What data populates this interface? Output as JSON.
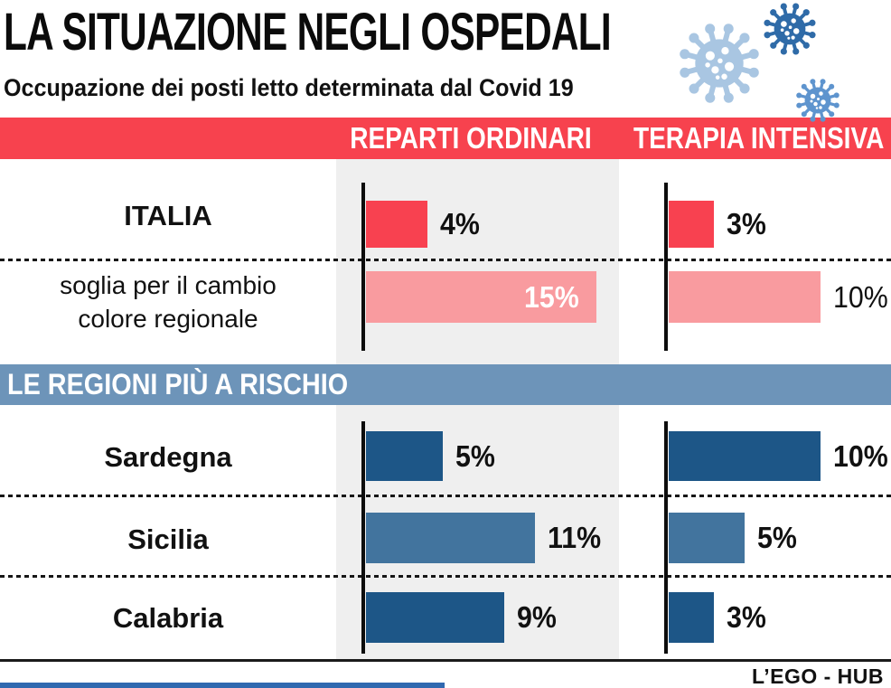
{
  "title": "LA SITUAZIONE NEGLI OSPEDALI",
  "subtitle": "Occupazione dei posti letto determinata dal Covid 19",
  "columns_header": {
    "reparti": "REPARTI ORDINARI",
    "terapia": "TERAPIA INTENSIVA"
  },
  "section_regions_title": "LE REGIONI PIÙ A RISCHIO",
  "footer": {
    "credit": "L’EGO - HUB"
  },
  "icons": [
    {
      "name": "virus-icon-large",
      "color": "#a9c6e2"
    },
    {
      "name": "virus-icon-dark",
      "color": "#2f6ba8"
    },
    {
      "name": "virus-icon-small",
      "color": "#5e94ce"
    }
  ],
  "colors": {
    "header_red": "#f7424e",
    "bar_red": "#f84150",
    "bar_pink": "#f99b9f",
    "regions_header_blue": "#6d94b9",
    "bar_dark_blue": "#1d5687",
    "bar_mid_blue": "#42749e",
    "chart_column_bg": "#efefef",
    "footer_accent_blue": "#3069b0"
  },
  "chart_data": {
    "type": "bar",
    "orientation": "horizontal",
    "unit": "%",
    "columns": [
      "REPARTI ORDINARI",
      "TERAPIA INTENSIVA"
    ],
    "sections": [
      {
        "name": "nazionale",
        "rows": [
          {
            "label": "ITALIA",
            "label_lines": [
              "ITALIA"
            ],
            "reparti_ordinari": 4,
            "terapia_intensiva": 3,
            "display_reparti": "4%",
            "display_terapia": "3%",
            "bar_color": "#f84150",
            "label_weight": "bold",
            "value_weight": "bold",
            "reparti_value_inside": false
          },
          {
            "label": "soglia per il cambio colore regionale",
            "label_lines": [
              "soglia per il cambio",
              "colore regionale"
            ],
            "reparti_ordinari": 15,
            "terapia_intensiva": 10,
            "display_reparti": "15%",
            "display_terapia": "10%",
            "bar_color": "#f99b9f",
            "label_weight": "normal",
            "value_weight": "normal",
            "reparti_value_inside": true
          }
        ]
      },
      {
        "name": "regioni",
        "rows": [
          {
            "label": "Sardegna",
            "label_lines": [
              "Sardegna"
            ],
            "reparti_ordinari": 5,
            "terapia_intensiva": 10,
            "display_reparti": "5%",
            "display_terapia": "10%",
            "bar_color": "#1d5687",
            "label_weight": "bold",
            "value_weight": "bold",
            "reparti_value_inside": false
          },
          {
            "label": "Sicilia",
            "label_lines": [
              "Sicilia"
            ],
            "reparti_ordinari": 11,
            "terapia_intensiva": 5,
            "display_reparti": "11%",
            "display_terapia": "5%",
            "bar_color": "#42749e",
            "label_weight": "bold",
            "value_weight": "bold",
            "reparti_value_inside": false
          },
          {
            "label": "Calabria",
            "label_lines": [
              "Calabria"
            ],
            "reparti_ordinari": 9,
            "terapia_intensiva": 3,
            "display_reparti": "9%",
            "display_terapia": "3%",
            "bar_color": "#1d5687",
            "label_weight": "bold",
            "value_weight": "bold",
            "reparti_value_inside": false
          }
        ]
      }
    ]
  }
}
